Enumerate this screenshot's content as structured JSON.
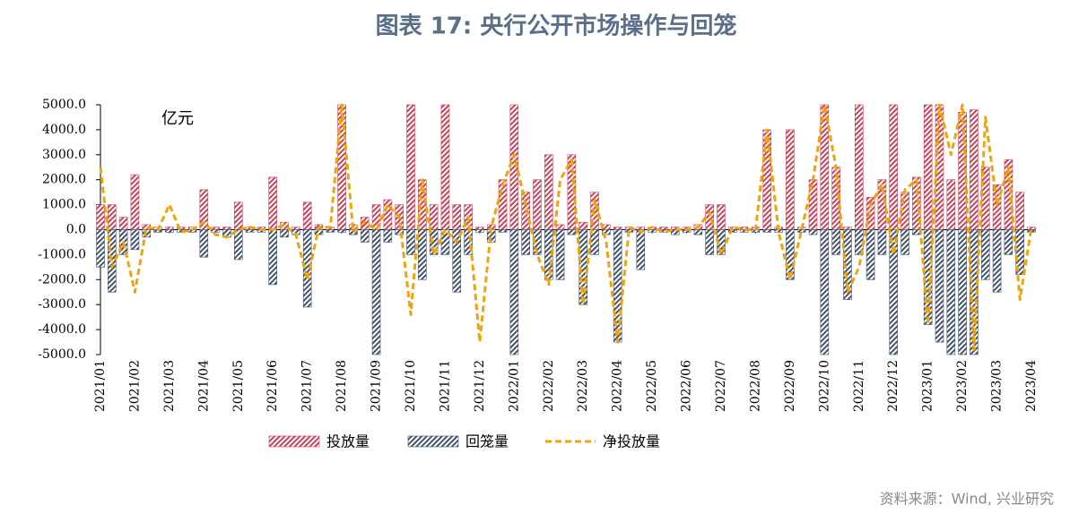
{
  "chart_data": {
    "type": "bar-line",
    "title": "图表 17: 央行公开市场操作与回笼",
    "annotation": "亿元",
    "source": "资料来源：Wind, 兴业研究",
    "categories": [
      "2021/01",
      null,
      null,
      "2021/02",
      null,
      null,
      "2021/03",
      null,
      null,
      "2021/04",
      null,
      null,
      "2021/05",
      null,
      null,
      "2021/06",
      null,
      null,
      "2021/07",
      null,
      null,
      "2021/08",
      null,
      null,
      "2021/09",
      null,
      null,
      "2021/10",
      null,
      null,
      "2021/11",
      null,
      null,
      "2021/12",
      null,
      null,
      "2022/01",
      null,
      null,
      "2022/02",
      null,
      null,
      "2022/03",
      null,
      null,
      "2022/04",
      null,
      null,
      "2022/05",
      null,
      null,
      "2022/06",
      null,
      null,
      "2022/07",
      null,
      null,
      "2022/08",
      null,
      null,
      "2022/09",
      null,
      null,
      "2022/10",
      null,
      null,
      "2022/11",
      null,
      null,
      "2022/12",
      null,
      null,
      "2023/01",
      null,
      null,
      "2023/02",
      null,
      null,
      "2023/03",
      null,
      null,
      "2023/04"
    ],
    "series": [
      {
        "name": "投放量",
        "kind": "bar",
        "color": "#c8435a",
        "values": [
          1000,
          1000,
          500,
          2200,
          200,
          100,
          100,
          100,
          100,
          1600,
          100,
          100,
          1100,
          100,
          100,
          2100,
          300,
          100,
          1100,
          200,
          100,
          5000,
          200,
          500,
          1000,
          1200,
          1000,
          5000,
          2000,
          1000,
          5000,
          1000,
          1000,
          100,
          200,
          2000,
          5000,
          1500,
          2000,
          3000,
          200,
          3000,
          300,
          1500,
          200,
          100,
          100,
          100,
          100,
          100,
          100,
          100,
          200,
          1000,
          1000,
          100,
          100,
          100,
          4000,
          100,
          4000,
          100,
          2000,
          5000,
          2500,
          100,
          5000,
          1300,
          2000,
          5000,
          1500,
          2100,
          5000,
          5000,
          2000,
          4700,
          4800,
          2500,
          1800,
          2800,
          1500,
          100
        ]
      },
      {
        "name": "回笼量",
        "kind": "bar",
        "color": "#44546a",
        "values": [
          -1500,
          -2500,
          -1000,
          -800,
          -300,
          -100,
          -100,
          -100,
          -100,
          -1100,
          -100,
          -300,
          -1200,
          -100,
          -100,
          -2200,
          -300,
          -200,
          -3100,
          -200,
          -100,
          -100,
          -200,
          -500,
          -5000,
          -500,
          -200,
          -1000,
          -2000,
          -1000,
          -1000,
          -2500,
          -1000,
          -100,
          -500,
          -100,
          -5000,
          -1000,
          -1000,
          -2000,
          -2000,
          -200,
          -3000,
          -1000,
          -200,
          -4500,
          -100,
          -1600,
          -100,
          -100,
          -200,
          -100,
          -200,
          -1000,
          -1000,
          -100,
          -100,
          -100,
          -100,
          -100,
          -2000,
          -100,
          -200,
          -5000,
          -1000,
          -2800,
          -1000,
          -2000,
          -1000,
          -5000,
          -1000,
          -200,
          -3800,
          -4500,
          -5000,
          -5000,
          -5000,
          -2000,
          -2500,
          -1000,
          -1800,
          -100
        ]
      },
      {
        "name": "净投放量",
        "kind": "line",
        "color": "#f0a30a",
        "values": [
          2500,
          -1500,
          -500,
          -2500,
          100,
          0,
          1000,
          -100,
          0,
          300,
          -200,
          -300,
          0,
          100,
          0,
          0,
          200,
          -200,
          -2000,
          100,
          100,
          5000,
          -100,
          300,
          0,
          1000,
          500,
          -3400,
          2000,
          -1000,
          0,
          -500,
          500,
          -4500,
          100,
          1800,
          3000,
          1000,
          -1000,
          -2200,
          2000,
          2800,
          -3000,
          1200,
          -500,
          -4500,
          100,
          -100,
          100,
          -100,
          0,
          0,
          100,
          700,
          -1000,
          100,
          0,
          0,
          4000,
          -100,
          -2000,
          0,
          2000,
          5000,
          2500,
          -2500,
          -1500,
          1000,
          1800,
          -1000,
          1600,
          2000,
          -3800,
          5000,
          3000,
          5000,
          -4800,
          4500,
          1000,
          2500,
          -2800,
          100
        ]
      }
    ],
    "ylim": [
      -5000,
      5000
    ],
    "yticks": [
      {
        "value": -5000,
        "label": "-5000.0"
      },
      {
        "value": -4000,
        "label": "-4000.0"
      },
      {
        "value": -3000,
        "label": "-3000.0"
      },
      {
        "value": -2000,
        "label": "-2000.0"
      },
      {
        "value": -1000,
        "label": "-1000.0"
      },
      {
        "value": 0,
        "label": "0.0"
      },
      {
        "value": 1000,
        "label": "1000.0"
      },
      {
        "value": 2000,
        "label": "2000.0"
      },
      {
        "value": 3000,
        "label": "3000.0"
      },
      {
        "value": 4000,
        "label": "4000.0"
      },
      {
        "value": 5000,
        "label": "5000.0"
      }
    ],
    "grid": false
  }
}
